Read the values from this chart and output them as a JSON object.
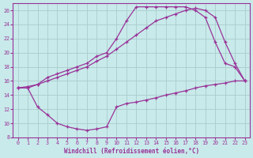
{
  "xlabel": "Windchill (Refroidissement éolien,°C)",
  "bg_color": "#c8eaea",
  "line_color": "#993399",
  "grid_color": "#b8d8d8",
  "xlim": [
    -0.5,
    23.5
  ],
  "ylim": [
    8,
    27
  ],
  "yticks": [
    8,
    10,
    12,
    14,
    16,
    18,
    20,
    22,
    24,
    26
  ],
  "xticks": [
    0,
    1,
    2,
    3,
    4,
    5,
    6,
    7,
    8,
    9,
    10,
    11,
    12,
    13,
    14,
    15,
    16,
    17,
    18,
    19,
    20,
    21,
    22,
    23
  ],
  "curve1_x": [
    0,
    1,
    2,
    3,
    4,
    5,
    6,
    7,
    8,
    9,
    10,
    11,
    12,
    13,
    14,
    15,
    16,
    17,
    18,
    19,
    20,
    21,
    22,
    23
  ],
  "curve1_y": [
    15.0,
    15.0,
    12.3,
    11.2,
    10.0,
    9.5,
    9.2,
    9.0,
    9.2,
    9.5,
    12.3,
    12.8,
    13.0,
    13.3,
    13.6,
    14.0,
    14.3,
    14.6,
    15.0,
    15.3,
    15.5,
    15.7,
    16.0,
    16.0
  ],
  "curve2_x": [
    0,
    1,
    2,
    3,
    4,
    5,
    6,
    7,
    8,
    9,
    10,
    11,
    12,
    13,
    14,
    15,
    16,
    17,
    18,
    19,
    20,
    21,
    22,
    23
  ],
  "curve2_y": [
    15.0,
    15.0,
    15.5,
    16.5,
    17.0,
    17.5,
    18.0,
    18.5,
    19.5,
    20.0,
    22.0,
    24.5,
    26.5,
    26.5,
    26.5,
    26.5,
    26.5,
    26.5,
    26.0,
    25.0,
    21.5,
    18.5,
    18.0,
    16.0
  ],
  "curve3_x": [
    0,
    1,
    2,
    3,
    4,
    5,
    6,
    7,
    8,
    9,
    10,
    11,
    12,
    13,
    14,
    15,
    16,
    17,
    18,
    19,
    20,
    21,
    22,
    23
  ],
  "curve3_y": [
    15.0,
    15.2,
    15.5,
    16.0,
    16.5,
    17.0,
    17.5,
    18.0,
    18.8,
    19.5,
    20.5,
    21.5,
    22.5,
    23.5,
    24.5,
    25.0,
    25.5,
    26.0,
    26.3,
    26.0,
    25.0,
    21.5,
    18.5,
    16.0
  ]
}
